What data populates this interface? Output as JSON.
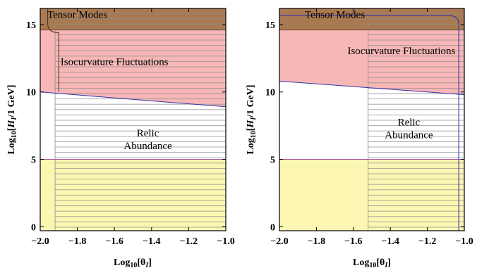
{
  "chart_data": [
    {
      "type": "area",
      "xlabel": "Log₁₀[θI]",
      "ylabel": "Log₁₀[HI/1 GeV]",
      "xlim": [
        -2.0,
        -1.0
      ],
      "ylim": [
        -0.3,
        16.2
      ],
      "xticks": [
        "-2.0",
        "-1.8",
        "-1.6",
        "-1.4",
        "-1.2",
        "-1.0"
      ],
      "yticks": [
        "0",
        "5",
        "10",
        "15"
      ],
      "grid": false,
      "regions": [
        {
          "name": "Tensor Modes",
          "label": "Tensor Modes",
          "color": "#a97a52",
          "hatched": true,
          "label_at": [
            -1.8,
            15.5
          ],
          "polygon": [
            [
              -2.0,
              14.6
            ],
            [
              -1.0,
              14.6
            ],
            [
              -1.0,
              16.2
            ],
            [
              -2.0,
              16.2
            ]
          ]
        },
        {
          "name": "Isocurvature Fluctuations",
          "label": "Isocurvature Fluctuations",
          "color": "#f7b7b7",
          "hatched": true,
          "label_at": [
            -1.6,
            12.0
          ],
          "polygon": [
            [
              -2.0,
              10.0
            ],
            [
              -1.0,
              8.9
            ],
            [
              -1.0,
              14.6
            ],
            [
              -2.0,
              14.6
            ]
          ]
        },
        {
          "name": "Relic Abundance",
          "label": "Relic\nAbundance",
          "color": "#ffffff",
          "hatched": true,
          "label_at": [
            -1.42,
            6.7
          ],
          "polygon": [
            [
              -1.92,
              9.9
            ],
            [
              -1.0,
              8.9
            ],
            [
              -1.0,
              5.0
            ],
            [
              -1.92,
              5.0
            ]
          ]
        },
        {
          "name": "lower region",
          "label": "",
          "color": "#fbf7b3",
          "hatched": true,
          "polygon": [
            [
              -2.0,
              -0.3
            ],
            [
              -1.0,
              -0.3
            ],
            [
              -1.0,
              5.0
            ],
            [
              -2.0,
              5.0
            ]
          ]
        }
      ],
      "hatch_start_x": -1.92,
      "curve": [
        [
          -1.96,
          16.2
        ],
        [
          -1.96,
          15.1
        ],
        [
          -1.9,
          14.4
        ],
        [
          -1.9,
          10.0
        ]
      ]
    },
    {
      "type": "area",
      "xlabel": "Log₁₀[θI]",
      "ylabel": "Log₁₀[HI/1 GeV]",
      "xlim": [
        -2.0,
        -1.0
      ],
      "ylim": [
        -0.3,
        16.2
      ],
      "xticks": [
        "-2.0",
        "-1.8",
        "-1.6",
        "-1.4",
        "-1.2",
        "-1.0"
      ],
      "yticks": [
        "0",
        "5",
        "10",
        "15"
      ],
      "grid": false,
      "regions": [
        {
          "name": "Tensor Modes",
          "label": "Tensor Modes",
          "color": "#a97a52",
          "hatched": true,
          "label_at": [
            -1.7,
            15.5
          ],
          "polygon": [
            [
              -2.0,
              14.6
            ],
            [
              -1.0,
              14.6
            ],
            [
              -1.0,
              16.2
            ],
            [
              -2.0,
              16.2
            ]
          ]
        },
        {
          "name": "Isocurvature Fluctuations",
          "label": "Isocurvature Fluctuations",
          "color": "#f7b7b7",
          "hatched": true,
          "label_at": [
            -1.34,
            12.8
          ],
          "polygon": [
            [
              -2.0,
              10.8
            ],
            [
              -1.0,
              9.8
            ],
            [
              -1.0,
              14.6
            ],
            [
              -2.0,
              14.6
            ]
          ]
        },
        {
          "name": "Relic Abundance",
          "label": "Relic\nAbundance",
          "color": "#ffffff",
          "hatched": true,
          "label_at": [
            -1.3,
            7.5
          ],
          "polygon": [
            [
              -1.52,
              10.3
            ],
            [
              -1.0,
              9.8
            ],
            [
              -1.0,
              5.0
            ],
            [
              -1.52,
              5.0
            ]
          ]
        },
        {
          "name": "lower region",
          "label": "",
          "color": "#fbf7b3",
          "hatched": true,
          "polygon": [
            [
              -2.0,
              -0.3
            ],
            [
              -1.0,
              -0.3
            ],
            [
              -1.0,
              5.0
            ],
            [
              -2.0,
              5.0
            ]
          ]
        }
      ],
      "hatch_start_x": -1.52,
      "curve": [
        [
          -2.0,
          15.7
        ],
        [
          -1.1,
          15.7
        ],
        [
          -1.03,
          15.1
        ],
        [
          -1.03,
          -0.3
        ]
      ]
    }
  ]
}
